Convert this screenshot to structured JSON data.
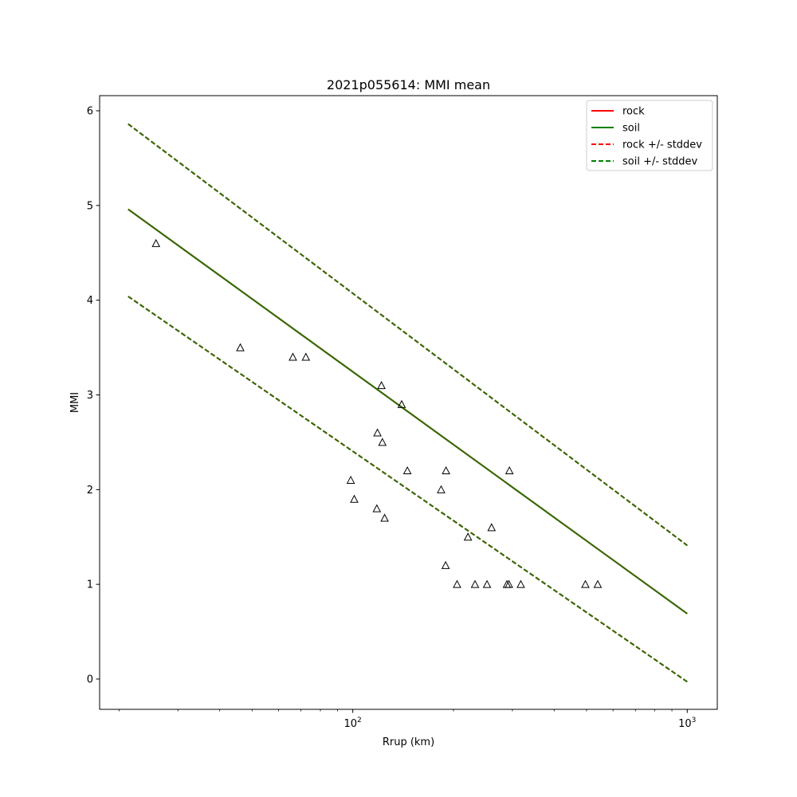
{
  "chart_data": {
    "type": "line",
    "title": "2021p055614: MMI mean",
    "xlabel": "Rrup (km)",
    "ylabel": "MMI",
    "xscale": "log",
    "xlim": [
      17.5,
      1230
    ],
    "ylim": [
      -0.32,
      6.16
    ],
    "grid": false,
    "legend_placement": "top-right",
    "x_ticks": [
      {
        "value": 100,
        "base": "10",
        "exp": "2"
      },
      {
        "value": 1000,
        "base": "10",
        "exp": "3"
      }
    ],
    "y_ticks": [
      {
        "value": 0,
        "label": "0"
      },
      {
        "value": 1,
        "label": "1"
      },
      {
        "value": 2,
        "label": "2"
      },
      {
        "value": 3,
        "label": "3"
      },
      {
        "value": 4,
        "label": "4"
      },
      {
        "value": 5,
        "label": "5"
      },
      {
        "value": 6,
        "label": "6"
      }
    ],
    "legend": [
      {
        "label": "rock",
        "color": "#ff0000",
        "dashed": false
      },
      {
        "label": "soil",
        "color": "#008000",
        "dashed": false
      },
      {
        "label": "rock +/- stddev",
        "color": "#ff0000",
        "dashed": true
      },
      {
        "label": "soil +/- stddev",
        "color": "#008000",
        "dashed": true
      }
    ],
    "series": [
      {
        "name": "rock",
        "color": "#ff0000",
        "dashed": false,
        "x": [
          21.3,
          1000
        ],
        "y": [
          4.96,
          0.69
        ]
      },
      {
        "name": "rock +/- stddev",
        "color": "#ff0000",
        "dashed": true,
        "x": [
          21.3,
          1000
        ],
        "y": [
          5.86,
          1.41
        ]
      },
      {
        "name": "rock +/- stddev",
        "color": "#ff0000",
        "dashed": true,
        "x": [
          21.3,
          1000
        ],
        "y": [
          4.04,
          -0.03
        ]
      },
      {
        "name": "soil",
        "color": "#2a6e00",
        "dashed": false,
        "x": [
          21.3,
          1000
        ],
        "y": [
          4.96,
          0.69
        ]
      },
      {
        "name": "soil +/- stddev",
        "color": "#2a6e00",
        "dashed": true,
        "x": [
          21.3,
          1000
        ],
        "y": [
          5.86,
          1.41
        ]
      },
      {
        "name": "soil +/- stddev",
        "color": "#2a6e00",
        "dashed": true,
        "x": [
          21.3,
          1000
        ],
        "y": [
          4.04,
          -0.03
        ]
      }
    ],
    "observations": {
      "marker": "triangle",
      "x": [
        25.8,
        46.1,
        66.2,
        72.4,
        98.6,
        101,
        118,
        118.5,
        121.8,
        122.6,
        124.5,
        140,
        145.6,
        183.7,
        189.5,
        190,
        205,
        221,
        232,
        252,
        260,
        289,
        293,
        294,
        318,
        496,
        540
      ],
      "y": [
        4.6,
        3.5,
        3.4,
        3.4,
        2.1,
        1.9,
        1.8,
        2.6,
        3.1,
        2.5,
        1.7,
        2.9,
        2.2,
        2.0,
        1.2,
        2.2,
        1.0,
        1.5,
        1.0,
        1.0,
        1.6,
        1.0,
        1.0,
        2.2,
        1.0,
        1.0,
        1.0
      ]
    }
  }
}
